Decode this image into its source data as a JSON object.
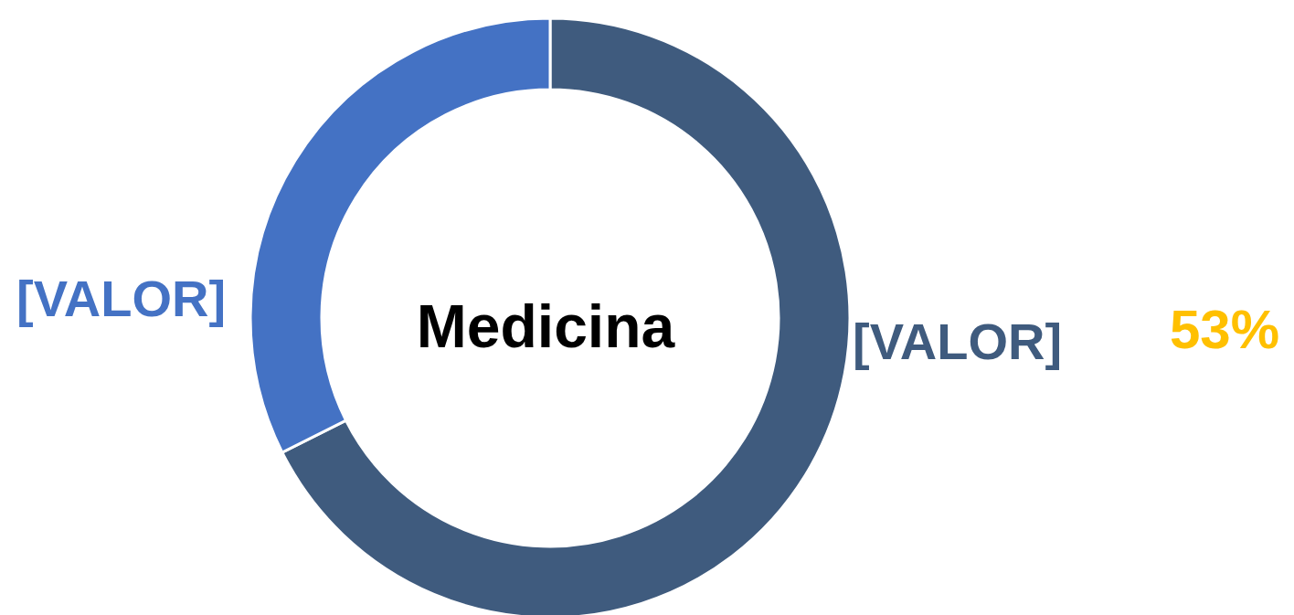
{
  "chart_data": {
    "type": "donut",
    "title": "Medicina",
    "categories": [
      null,
      null
    ],
    "values": [
      67.6,
      32.4
    ],
    "colors": [
      "#3f5b7e",
      "#4472c4"
    ],
    "value_labels": [
      "[VALOR]",
      "[VALOR]"
    ],
    "annotations": [
      "53%"
    ],
    "legend": false
  }
}
